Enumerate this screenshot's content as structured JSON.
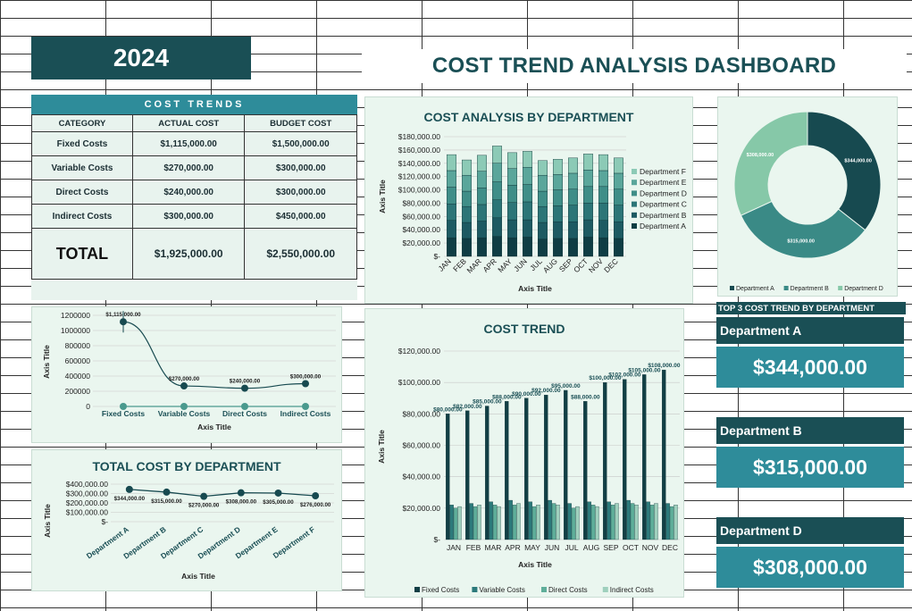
{
  "header": {
    "year": "2024",
    "title": "COST TREND ANALYSIS DASHBOARD"
  },
  "cost_trends": {
    "title": "COST TRENDS",
    "columns": [
      "CATEGORY",
      "ACTUAL COST",
      "BUDGET COST"
    ],
    "rows": [
      {
        "category": "Fixed Costs",
        "actual": "$1,115,000.00",
        "budget": "$1,500,000.00"
      },
      {
        "category": "Variable Costs",
        "actual": "$270,000.00",
        "budget": "$300,000.00"
      },
      {
        "category": "Direct Costs",
        "actual": "$240,000.00",
        "budget": "$300,000.00"
      },
      {
        "category": "Indirect Costs",
        "actual": "$300,000.00",
        "budget": "$450,000.00"
      }
    ],
    "total_label": "TOTAL",
    "total_actual": "$1,925,000.00",
    "total_budget": "$2,550,000.00"
  },
  "top3": {
    "title": "TOP 3 COST TREND BY DEPARTMENT",
    "items": [
      {
        "name": "Department A",
        "value": "$344,000.00"
      },
      {
        "name": "Department B",
        "value": "$315,000.00"
      },
      {
        "name": "Department D",
        "value": "$308,000.00"
      }
    ]
  },
  "colors": {
    "dark": "#1a4f55",
    "teal": "#2e8c9a",
    "panel": "#eaf6ef"
  },
  "chart_data": [
    {
      "id": "cost-by-dept",
      "type": "bar",
      "stacked": true,
      "title": "COST ANALYSIS BY DEPARTMENT",
      "xlabel": "Axis Title",
      "ylabel": "Axis Title",
      "ylim": [
        0,
        180000
      ],
      "yticks": [
        "$-",
        "$20,000.00",
        "$40,000.00",
        "$60,000.00",
        "$80,000.00",
        "$100,000.00",
        "$120,000.00",
        "$140,000.00",
        "$160,000.00",
        "$180,000.00"
      ],
      "categories": [
        "JAN",
        "FEB",
        "MAR",
        "APR",
        "MAY",
        "JUN",
        "JUL",
        "AUG",
        "SEP",
        "OCT",
        "NOV",
        "DEC"
      ],
      "legend": "right",
      "series": [
        {
          "name": "Department A",
          "color": "#0f3d44",
          "values": [
            28000,
            27000,
            28000,
            30000,
            28000,
            29000,
            26000,
            27000,
            27000,
            29000,
            28000,
            27000
          ]
        },
        {
          "name": "Department B",
          "color": "#1d5a62",
          "values": [
            26000,
            24000,
            25000,
            28000,
            27000,
            26000,
            25000,
            25000,
            25000,
            26000,
            26000,
            25000
          ]
        },
        {
          "name": "Department C",
          "color": "#2c7577",
          "values": [
            25000,
            24000,
            25000,
            27000,
            26000,
            27000,
            24000,
            24000,
            25000,
            25000,
            26000,
            25000
          ]
        },
        {
          "name": "Department D",
          "color": "#3f8e88",
          "values": [
            25000,
            23000,
            25000,
            27000,
            26000,
            26000,
            23000,
            24000,
            24000,
            25000,
            25000,
            24000
          ]
        },
        {
          "name": "Department E",
          "color": "#5aa69b",
          "values": [
            25000,
            24000,
            25000,
            28000,
            25000,
            26000,
            24000,
            23000,
            24000,
            25000,
            24000,
            24000
          ]
        },
        {
          "name": "Department F",
          "color": "#8ccab6",
          "values": [
            24000,
            23000,
            24000,
            26000,
            24000,
            24000,
            22000,
            23000,
            23000,
            24000,
            24000,
            23000
          ]
        }
      ]
    },
    {
      "id": "dept-donut",
      "type": "pie",
      "donut": true,
      "legend": "bottom",
      "labels": [
        "Department A",
        "Department B",
        "Department D"
      ],
      "values": [
        344000,
        315000,
        308000
      ],
      "data_labels": [
        "$344,000.00",
        "$315,000.00",
        "$308,000.00"
      ],
      "colors": [
        "#174a50",
        "#3a8a86",
        "#86c8a8"
      ]
    },
    {
      "id": "actual-line",
      "type": "line",
      "xlabel": "Axis Title",
      "ylabel": "Axis Title",
      "ylim": [
        0,
        1200000
      ],
      "yticks": [
        "0",
        "200000",
        "400000",
        "600000",
        "800000",
        "1000000",
        "1200000"
      ],
      "categories": [
        "Fixed Costs",
        "Variable Costs",
        "Direct Costs",
        "Indirect Costs"
      ],
      "series": [
        {
          "values": [
            1115000,
            270000,
            240000,
            300000
          ],
          "labels": [
            "$1,115,000.00",
            "$270,000.00",
            "$240,000.00",
            "$300,000.00"
          ],
          "color": "#174a50"
        },
        {
          "values": [
            0,
            0,
            0,
            0
          ],
          "color": "#4a9a8e"
        }
      ]
    },
    {
      "id": "total-by-dept",
      "type": "line",
      "title": "TOTAL COST BY DEPARTMENT",
      "xlabel": "Axis Title",
      "ylabel": "Axis Title",
      "ylim": [
        0,
        400000
      ],
      "yticks": [
        "$-",
        "$100,000.00",
        "$200,000.00",
        "$300,000.00",
        "$400,000.00"
      ],
      "categories": [
        "Department A",
        "Department B",
        "Department C",
        "Department D",
        "Department E",
        "Department F"
      ],
      "series": [
        {
          "values": [
            344000,
            315000,
            270000,
            308000,
            305000,
            276000
          ],
          "labels": [
            "$344,000.00",
            "$315,000.00",
            "$270,000.00",
            "$308,000.00",
            "$305,000.00",
            "$276,000.00"
          ],
          "color": "#174a50"
        }
      ]
    },
    {
      "id": "cost-trend",
      "type": "bar",
      "title": "COST TREND",
      "xlabel": "Axis Title",
      "ylabel": "Axis Title",
      "ylim": [
        0,
        120000
      ],
      "yticks": [
        "$-",
        "$20,000.00",
        "$40,000.00",
        "$60,000.00",
        "$80,000.00",
        "$100,000.00",
        "$120,000.00"
      ],
      "categories": [
        "JAN",
        "FEB",
        "MAR",
        "APR",
        "MAY",
        "JUN",
        "JUL",
        "AUG",
        "SEP",
        "OCT",
        "NOV",
        "DEC"
      ],
      "legend": "bottom",
      "series": [
        {
          "name": "Fixed Costs",
          "color": "#123f45",
          "values": [
            80000,
            82000,
            85000,
            88000,
            90000,
            92000,
            95000,
            88000,
            100000,
            102000,
            105000,
            108000
          ],
          "labels": [
            "$80,000.00",
            "$82,000.00",
            "$85,000.00",
            "$88,000.00",
            "$90,000.00",
            "$92,000.00",
            "$95,000.00",
            "$88,000.00",
            "$100,000.00",
            "$102,000.00",
            "$105,000.00",
            "$108,000.00"
          ]
        },
        {
          "name": "Variable Costs",
          "color": "#2c7a7b",
          "values": [
            22000,
            23000,
            24000,
            25000,
            24000,
            25000,
            23000,
            24000,
            24000,
            25000,
            24000,
            23000
          ]
        },
        {
          "name": "Direct Costs",
          "color": "#5fae9a",
          "values": [
            20000,
            21000,
            22000,
            22000,
            21000,
            23000,
            20000,
            22000,
            22000,
            23000,
            22000,
            21000
          ]
        },
        {
          "name": "Indirect Costs",
          "color": "#9fd0bd",
          "values": [
            21000,
            22000,
            21000,
            23000,
            22000,
            22000,
            21000,
            21000,
            23000,
            22000,
            23000,
            22000
          ]
        }
      ]
    }
  ]
}
